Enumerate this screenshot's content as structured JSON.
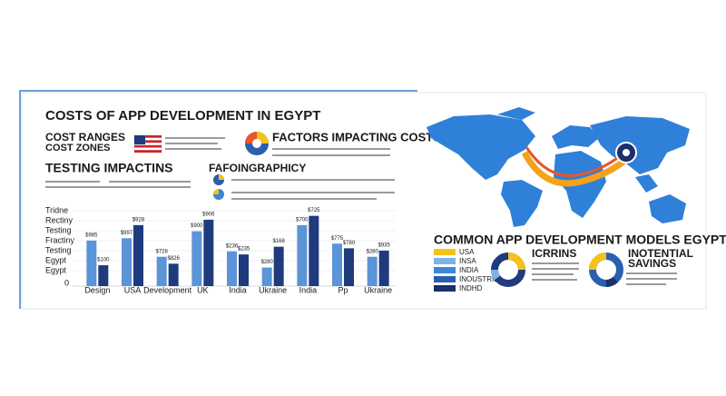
{
  "title": "COSTS OF APP DEVELOPMENT IN EGYPT",
  "cost_ranges": {
    "title": "COST RANGES",
    "subtitle": "COST ZONES"
  },
  "factors": {
    "title": "FACTORS IMPACTING COSTS"
  },
  "testing": {
    "title": "TESTING IMPACTINS"
  },
  "infographic": {
    "title": "FAFOINGRAPHICY"
  },
  "chart_data": {
    "type": "bar",
    "categories": [
      "Design",
      "USA",
      "Development",
      "UK",
      "India",
      "Ukraine",
      "India",
      "Pp",
      "Ukraine"
    ],
    "series": [
      {
        "color": "#5b94d8",
        "values": [
          59,
          62,
          38,
          71,
          45,
          24,
          79,
          55,
          38
        ],
        "labels": [
          "$985",
          "$997",
          "$728",
          "$900",
          "$236",
          "$280",
          "$700",
          "$775",
          "$280"
        ]
      },
      {
        "color": "#1f3b7e",
        "values": [
          27,
          79,
          29,
          86,
          41,
          51,
          91,
          49,
          46
        ],
        "labels": [
          "$100",
          "$928",
          "$826",
          "$906",
          "$235",
          "$168",
          "$725",
          "$780",
          "$935"
        ]
      }
    ],
    "y_axis_labels": [
      "Tridne",
      "Rectiny",
      "Testing",
      "Fractiny",
      "Testing",
      "Egypt",
      "Egypt"
    ],
    "ylim": [
      0,
      100
    ],
    "yticks": [
      0
    ]
  },
  "models": {
    "title": "COMMON APP DEVELOPMENT MODELS EGYPT",
    "legend": [
      {
        "label": "USA",
        "color": "#f5c21b"
      },
      {
        "label": "INSA",
        "color": "#7fb2e8"
      },
      {
        "label": "INDIA",
        "color": "#3d86d8"
      },
      {
        "label": "INOUSTRIE",
        "color": "#2b5fae"
      },
      {
        "label": "INDHD",
        "color": "#1b2f6b"
      }
    ],
    "donut_left": {
      "title": "ICRRINS"
    },
    "donut_right": {
      "title": "INOTENTIAL",
      "subtitle": "SAVINGS"
    }
  }
}
